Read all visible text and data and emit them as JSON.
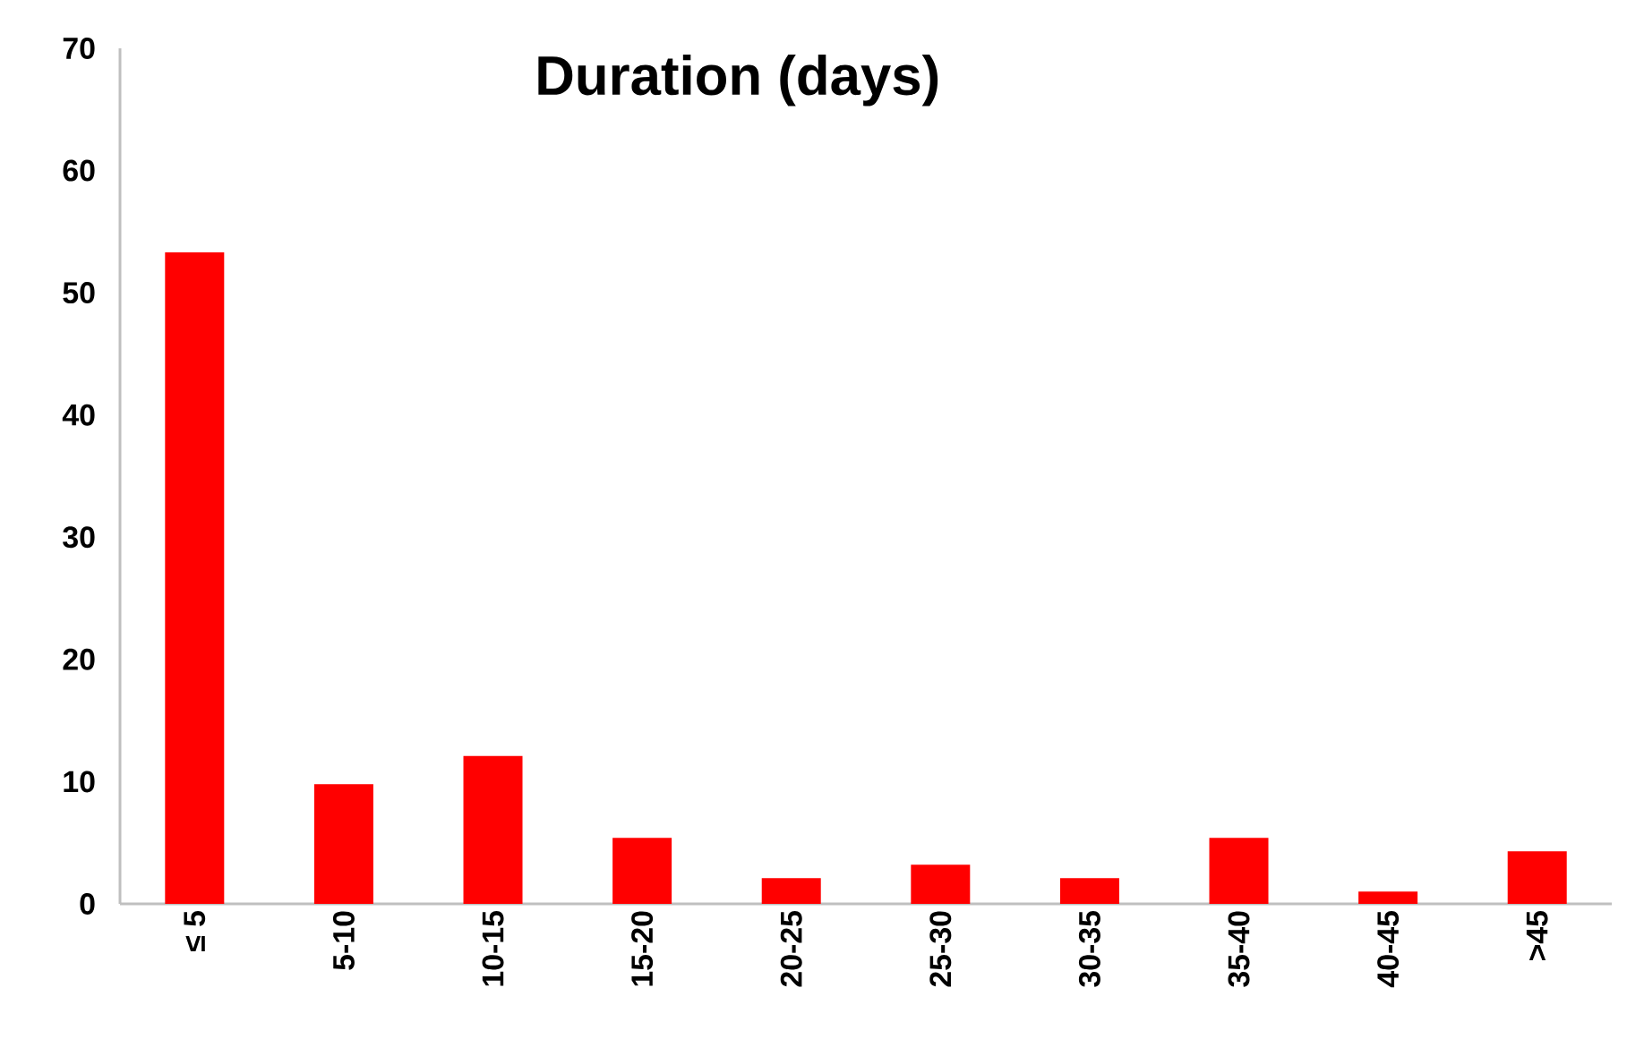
{
  "chart_data": {
    "type": "bar",
    "title": "Duration (days)",
    "categories": [
      "≤ 5",
      "5-10",
      "10-15",
      "15-20",
      "20-25",
      "25-30",
      "30-35",
      "35-40",
      "40-45",
      ">45"
    ],
    "values": [
      53.3,
      9.8,
      12.1,
      5.4,
      2.1,
      3.2,
      2.1,
      5.4,
      1.0,
      4.3
    ],
    "color": "#ff0000",
    "ylim": [
      0,
      70
    ],
    "yticks": [
      0,
      10,
      20,
      30,
      40,
      50,
      60,
      70
    ],
    "grid": false
  }
}
